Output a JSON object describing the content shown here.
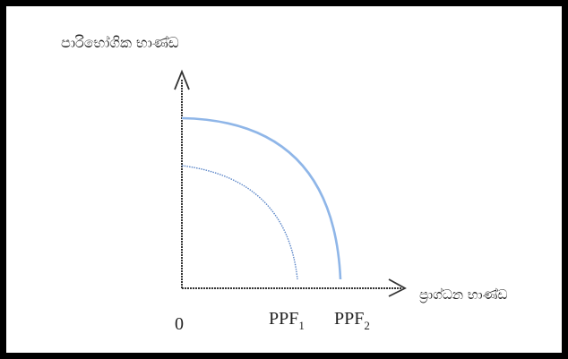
{
  "diagram": {
    "y_axis_label": "පාරිභෝගික භාණ්ඩ",
    "x_axis_label": "ප්‍රාග්ධන භාණ්ඩ",
    "origin_label": "0",
    "curves": [
      {
        "name_base": "PPF",
        "name_sub": "1",
        "color": "#5b86c8"
      },
      {
        "name_base": "PPF",
        "name_sub": "2",
        "color": "#8fb6e8"
      }
    ],
    "axis_color": "#333333",
    "border_color": "#000000"
  }
}
